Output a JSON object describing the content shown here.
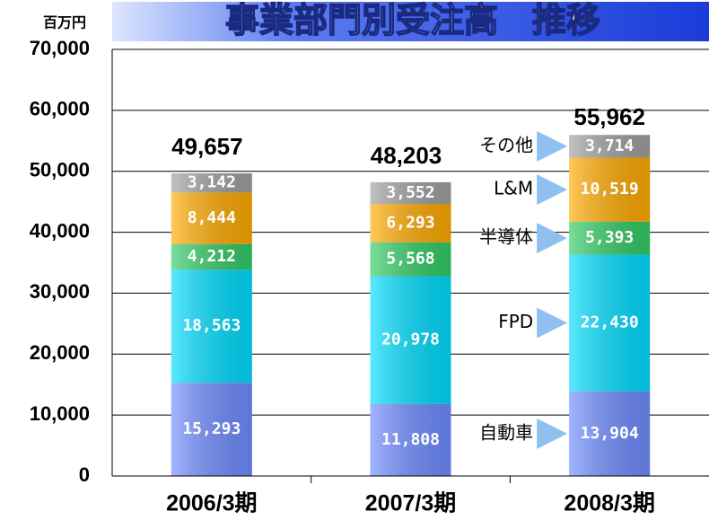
{
  "chart_data": {
    "type": "stacked_bar",
    "title": "事業部門別受注高　推移",
    "unit": "百万円",
    "categories": [
      "2006/3期",
      "2007/3期",
      "2008/3期"
    ],
    "series": [
      {
        "name": "自動車",
        "color": "#6f8cff",
        "values": [
          15293,
          11808,
          13904
        ],
        "value_labels": [
          "15,293",
          "11,808",
          "13,904"
        ]
      },
      {
        "name": "FPD",
        "color": "#00ddff",
        "values": [
          18563,
          20978,
          22430
        ],
        "value_labels": [
          "18,563",
          "20,978",
          "22,430"
        ]
      },
      {
        "name": "半導体",
        "color": "#33cc66",
        "values": [
          4212,
          5568,
          5393
        ],
        "value_labels": [
          "4,212",
          "5,568",
          "5,393"
        ]
      },
      {
        "name": "L&M",
        "color": "#ffaa00",
        "values": [
          8444,
          6293,
          10519
        ],
        "value_labels": [
          "8,444",
          "6,293",
          "10,519"
        ]
      },
      {
        "name": "その他",
        "color": "#a0a0a0",
        "values": [
          3142,
          3552,
          3714
        ],
        "value_labels": [
          "3,142",
          "3,552",
          "3,714"
        ]
      }
    ],
    "totals": [
      49657,
      48203,
      55962
    ],
    "total_labels": [
      "49,657",
      "48,203",
      "55,962"
    ],
    "ylim": [
      0,
      70000
    ],
    "yticks": [
      0,
      {
        "value": 10000,
        "label": "10,000"
      },
      {
        "value": 20000,
        "label": "20,000"
      },
      {
        "value": 30000,
        "label": "30,000"
      },
      {
        "value": 40000,
        "label": "40,000"
      },
      {
        "value": 50000,
        "label": "50,000"
      },
      {
        "value": 60000,
        "label": "60,000"
      },
      {
        "value": 70000,
        "label": "70,000"
      }
    ],
    "grid": true
  }
}
